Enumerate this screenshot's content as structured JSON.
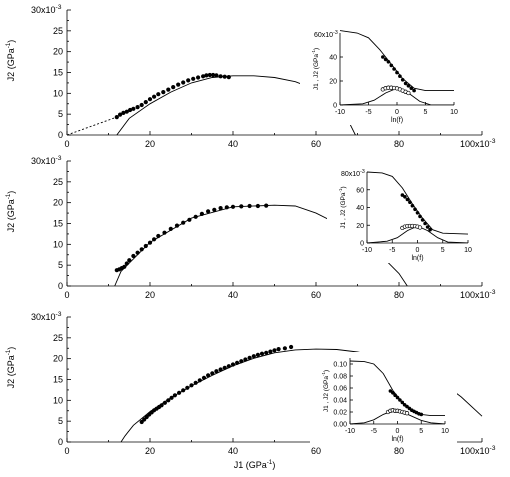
{
  "chart_data": [
    {
      "type": "scatter",
      "panel": "top",
      "xlabel": "",
      "ylabel": "J2 (GPa^-1)",
      "xlim": [
        0,
        100
      ],
      "ylim": [
        0,
        30
      ],
      "x_scale_label": "100x10",
      "x_scale_exp": "-3",
      "y_scale_label": "30x10",
      "y_scale_exp": "-3",
      "x_ticks": [
        "0",
        "20",
        "40",
        "60",
        "80"
      ],
      "y_ticks": [
        "0",
        "5",
        "10",
        "15",
        "20",
        "25"
      ],
      "points": [
        [
          12.0,
          4.3
        ],
        [
          12.8,
          4.9
        ],
        [
          13.6,
          5.3
        ],
        [
          14.4,
          5.6
        ],
        [
          15.2,
          6.0
        ],
        [
          16.0,
          6.3
        ],
        [
          17.0,
          6.7
        ],
        [
          18.0,
          7.2
        ],
        [
          19.0,
          7.9
        ],
        [
          20.0,
          8.6
        ],
        [
          21.0,
          9.2
        ],
        [
          22.0,
          9.8
        ],
        [
          23.2,
          10.3
        ],
        [
          24.4,
          10.9
        ],
        [
          25.6,
          11.5
        ],
        [
          26.8,
          12.1
        ],
        [
          28.0,
          12.6
        ],
        [
          29.2,
          13.1
        ],
        [
          30.4,
          13.5
        ],
        [
          31.6,
          13.8
        ],
        [
          32.8,
          14.1
        ],
        [
          33.6,
          14.3
        ],
        [
          34.4,
          14.4
        ],
        [
          35.2,
          14.4
        ],
        [
          36.0,
          14.3
        ],
        [
          37.0,
          14.1
        ],
        [
          38.0,
          14.0
        ],
        [
          39.0,
          13.9
        ]
      ],
      "fit_curve": [
        [
          12,
          0
        ],
        [
          15,
          4
        ],
        [
          20,
          7.5
        ],
        [
          25,
          10.3
        ],
        [
          30,
          12.5
        ],
        [
          35,
          13.8
        ],
        [
          40,
          14.2
        ],
        [
          45,
          14.2
        ],
        [
          50,
          13.8
        ],
        [
          55,
          12.8
        ],
        [
          60,
          10.9
        ],
        [
          65,
          7.0
        ],
        [
          68,
          3.0
        ],
        [
          69.5,
          0
        ]
      ],
      "extrapolation": [
        [
          0,
          0
        ],
        [
          12,
          4.3
        ]
      ],
      "inset": {
        "ylabel": "J1 , J2 (GPa^-1)",
        "xlabel": "ln(f)",
        "xlim": [
          -10,
          10
        ],
        "ylim": [
          0,
          60
        ],
        "x_ticks": [
          "-10",
          "-5",
          "0",
          "5",
          "10"
        ],
        "y_ticks": [
          "0",
          "20",
          "40"
        ],
        "y_top_label": "60x10",
        "y_top_exp": "-3",
        "filled_points": [
          [
            -2.5,
            40
          ],
          [
            -2,
            38
          ],
          [
            -1.5,
            36
          ],
          [
            -1,
            33
          ],
          [
            -0.5,
            30
          ],
          [
            0,
            27
          ],
          [
            0.5,
            24
          ],
          [
            1,
            21
          ],
          [
            1.5,
            18
          ],
          [
            2,
            16
          ],
          [
            2.5,
            14
          ],
          [
            3,
            12
          ]
        ],
        "open_points": [
          [
            -2.5,
            13
          ],
          [
            -2,
            14
          ],
          [
            -1.5,
            14.4
          ],
          [
            -1,
            14.4
          ],
          [
            -0.5,
            14.2
          ],
          [
            0,
            13.8
          ],
          [
            0.5,
            13
          ],
          [
            1,
            12
          ],
          [
            1.5,
            11
          ],
          [
            2,
            10
          ]
        ],
        "j1_curve": [
          [
            -10,
            62
          ],
          [
            -7,
            60
          ],
          [
            -5,
            56
          ],
          [
            -3,
            46
          ],
          [
            -1,
            34
          ],
          [
            1,
            22
          ],
          [
            3,
            14
          ],
          [
            5,
            12
          ],
          [
            10,
            12
          ]
        ],
        "j2_curve": [
          [
            -10,
            0
          ],
          [
            -6,
            1
          ],
          [
            -4,
            4
          ],
          [
            -2,
            10
          ],
          [
            0,
            14
          ],
          [
            2,
            10
          ],
          [
            4,
            3
          ],
          [
            6,
            0
          ],
          [
            10,
            0
          ]
        ]
      }
    },
    {
      "type": "scatter",
      "panel": "middle",
      "xlabel": "",
      "ylabel": "J2 (GPa^-1)",
      "xlim": [
        0,
        100
      ],
      "ylim": [
        0,
        30
      ],
      "x_scale_label": "100x10",
      "x_scale_exp": "-3",
      "y_scale_label": "30x10",
      "y_scale_exp": "-3",
      "x_ticks": [
        "0",
        "20",
        "40",
        "60",
        "80"
      ],
      "y_ticks": [
        "0",
        "5",
        "10",
        "15",
        "20",
        "25"
      ],
      "points": [
        [
          12.0,
          3.8
        ],
        [
          12.6,
          4.0
        ],
        [
          13.2,
          4.3
        ],
        [
          13.8,
          4.6
        ],
        [
          14.4,
          5.4
        ],
        [
          15.0,
          6.2
        ],
        [
          16.0,
          7.2
        ],
        [
          17.0,
          8.0
        ],
        [
          18.0,
          8.8
        ],
        [
          19.0,
          9.6
        ],
        [
          20.0,
          10.4
        ],
        [
          21.0,
          11.2
        ],
        [
          22.0,
          12.0
        ],
        [
          23.5,
          12.8
        ],
        [
          25.0,
          13.7
        ],
        [
          26.5,
          14.5
        ],
        [
          28.0,
          15.2
        ],
        [
          29.5,
          15.9
        ],
        [
          31.0,
          16.6
        ],
        [
          32.5,
          17.3
        ],
        [
          34.0,
          17.9
        ],
        [
          35.5,
          18.3
        ],
        [
          37.0,
          18.7
        ],
        [
          38.5,
          18.9
        ],
        [
          40.0,
          19.0
        ],
        [
          42.0,
          19.1
        ],
        [
          44.0,
          19.2
        ],
        [
          46.0,
          19.2
        ],
        [
          48.0,
          19.3
        ]
      ],
      "fit_curve": [
        [
          11.5,
          0
        ],
        [
          13,
          3.5
        ],
        [
          20,
          10.5
        ],
        [
          30,
          16.3
        ],
        [
          40,
          19.0
        ],
        [
          50,
          19.4
        ],
        [
          55,
          19.2
        ],
        [
          60,
          17.5
        ],
        [
          65,
          15.0
        ],
        [
          70,
          12.0
        ],
        [
          75,
          8.0
        ],
        [
          80,
          3.0
        ],
        [
          82,
          0
        ]
      ],
      "inset": {
        "ylabel": "J1 , J2 (GPa^-1)",
        "xlabel": "ln(f)",
        "xlim": [
          -10,
          10
        ],
        "ylim": [
          0,
          80
        ],
        "x_ticks": [
          "-10",
          "-5",
          "0",
          "5",
          "10"
        ],
        "y_ticks": [
          "0",
          "20",
          "40",
          "60"
        ],
        "y_top_label": "80x10",
        "y_top_exp": "-3",
        "filled_points": [
          [
            -3,
            54
          ],
          [
            -2.5,
            52
          ],
          [
            -2,
            49
          ],
          [
            -1.5,
            46
          ],
          [
            -1,
            42
          ],
          [
            -0.5,
            38
          ],
          [
            0,
            34
          ],
          [
            0.5,
            30
          ],
          [
            1,
            26
          ],
          [
            1.5,
            22
          ],
          [
            2,
            18
          ],
          [
            2.5,
            15
          ]
        ],
        "open_points": [
          [
            -3,
            17
          ],
          [
            -2.5,
            18.5
          ],
          [
            -2,
            19
          ],
          [
            -1.5,
            19.2
          ],
          [
            -1,
            19.2
          ],
          [
            -0.5,
            19
          ],
          [
            0,
            18.5
          ],
          [
            0.5,
            17.5
          ]
        ],
        "j1_curve": [
          [
            -10,
            80
          ],
          [
            -7,
            79
          ],
          [
            -5,
            75
          ],
          [
            -3,
            62
          ],
          [
            -1,
            44
          ],
          [
            1,
            28
          ],
          [
            3,
            15
          ],
          [
            5,
            11
          ],
          [
            10,
            10
          ]
        ],
        "j2_curve": [
          [
            -10,
            0
          ],
          [
            -6,
            2
          ],
          [
            -4,
            6
          ],
          [
            -2,
            14
          ],
          [
            0,
            19
          ],
          [
            2,
            14
          ],
          [
            4,
            6
          ],
          [
            6,
            1
          ],
          [
            10,
            0
          ]
        ]
      }
    },
    {
      "type": "scatter",
      "panel": "bottom",
      "xlabel": "J1 (GPa^-1)",
      "ylabel": "J2 (GPa^-1)",
      "xlim": [
        0,
        100
      ],
      "ylim": [
        0,
        30
      ],
      "x_scale_label": "100x10",
      "x_scale_exp": "-3",
      "y_scale_label": "30x10",
      "y_scale_exp": "-3",
      "x_ticks": [
        "0",
        "20",
        "40",
        "60",
        "80"
      ],
      "y_ticks": [
        "0",
        "5",
        "10",
        "15",
        "20",
        "25"
      ],
      "points": [
        [
          18.0,
          4.8
        ],
        [
          18.6,
          5.4
        ],
        [
          19.2,
          6.0
        ],
        [
          19.8,
          6.6
        ],
        [
          20.4,
          7.1
        ],
        [
          21.0,
          7.6
        ],
        [
          21.6,
          8.0
        ],
        [
          22.2,
          8.4
        ],
        [
          22.8,
          8.8
        ],
        [
          23.6,
          9.4
        ],
        [
          24.4,
          10.0
        ],
        [
          25.2,
          10.6
        ],
        [
          26.0,
          11.2
        ],
        [
          27.0,
          11.8
        ],
        [
          28.0,
          12.4
        ],
        [
          29.0,
          13.0
        ],
        [
          30.0,
          13.6
        ],
        [
          31.0,
          14.2
        ],
        [
          32.0,
          14.8
        ],
        [
          33.0,
          15.4
        ],
        [
          34.0,
          16.0
        ],
        [
          35.0,
          16.5
        ],
        [
          36.0,
          17.0
        ],
        [
          37.0,
          17.4
        ],
        [
          38.0,
          17.8
        ],
        [
          39.0,
          18.2
        ],
        [
          40.0,
          18.6
        ],
        [
          41.0,
          19.0
        ],
        [
          42.0,
          19.4
        ],
        [
          43.0,
          19.8
        ],
        [
          44.0,
          20.2
        ],
        [
          45.0,
          20.6
        ],
        [
          46.0,
          20.9
        ],
        [
          47.0,
          21.2
        ],
        [
          48.0,
          21.4
        ],
        [
          49.0,
          21.7
        ],
        [
          50.0,
          22.0
        ],
        [
          51.0,
          22.3
        ],
        [
          52.5,
          22.5
        ],
        [
          54.0,
          22.8
        ]
      ],
      "fit_curve": [
        [
          13,
          0
        ],
        [
          14,
          1.5
        ],
        [
          16,
          4
        ],
        [
          20,
          7.3
        ],
        [
          25,
          10.6
        ],
        [
          30,
          13.5
        ],
        [
          35,
          16.0
        ],
        [
          40,
          18.3
        ],
        [
          45,
          20.1
        ],
        [
          50,
          21.4
        ],
        [
          55,
          22.1
        ],
        [
          60,
          22.3
        ],
        [
          65,
          22.2
        ],
        [
          70,
          21.6
        ],
        [
          75,
          20.6
        ],
        [
          80,
          19.2
        ],
        [
          85,
          17.2
        ],
        [
          90,
          14.6
        ],
        [
          95,
          10.8
        ],
        [
          100,
          6.2
        ]
      ],
      "inset": {
        "ylabel": "J1 , J2 (GPa^-1)",
        "xlabel": "ln(f)",
        "xlim": [
          -10,
          10
        ],
        "ylim": [
          0,
          0.11
        ],
        "x_ticks": [
          "-10",
          "-5",
          "0",
          "5",
          "10"
        ],
        "y_ticks": [
          "0.00",
          "0.02",
          "0.04",
          "0.06",
          "0.08",
          "0.10"
        ],
        "filled_points": [
          [
            -1.5,
            0.055
          ],
          [
            -1,
            0.052
          ],
          [
            -0.5,
            0.048
          ],
          [
            0,
            0.044
          ],
          [
            0.5,
            0.04
          ],
          [
            1,
            0.036
          ],
          [
            1.5,
            0.032
          ],
          [
            2,
            0.029
          ],
          [
            2.5,
            0.026
          ],
          [
            3,
            0.023
          ],
          [
            3.5,
            0.021
          ],
          [
            4,
            0.019
          ],
          [
            4.5,
            0.017
          ],
          [
            5,
            0.016
          ]
        ],
        "open_points": [
          [
            -2,
            0.02
          ],
          [
            -1.5,
            0.022
          ],
          [
            -1,
            0.023
          ],
          [
            -0.5,
            0.022
          ],
          [
            0,
            0.022
          ],
          [
            0.5,
            0.021
          ],
          [
            1,
            0.02
          ],
          [
            1.5,
            0.019
          ],
          [
            2,
            0.018
          ]
        ],
        "j1_curve": [
          [
            -10,
            0.105
          ],
          [
            -7,
            0.104
          ],
          [
            -5,
            0.1
          ],
          [
            -3,
            0.084
          ],
          [
            -1,
            0.056
          ],
          [
            1,
            0.036
          ],
          [
            3,
            0.024
          ],
          [
            5,
            0.016
          ],
          [
            7,
            0.014
          ],
          [
            10,
            0.014
          ]
        ],
        "j2_curve": [
          [
            -10,
            0.0
          ],
          [
            -7,
            0.002
          ],
          [
            -5,
            0.007
          ],
          [
            -3,
            0.016
          ],
          [
            -1,
            0.022
          ],
          [
            1,
            0.02
          ],
          [
            3,
            0.013
          ],
          [
            5,
            0.006
          ],
          [
            7,
            0.002
          ],
          [
            10,
            0.0
          ]
        ]
      }
    }
  ]
}
